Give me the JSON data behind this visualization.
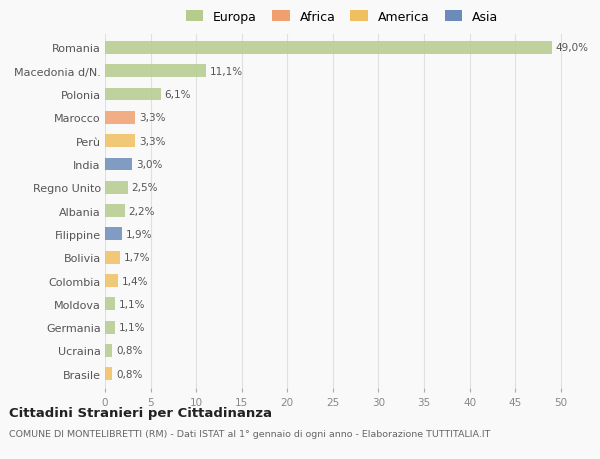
{
  "countries": [
    "Romania",
    "Macedonia d/N.",
    "Polonia",
    "Marocco",
    "Perù",
    "India",
    "Regno Unito",
    "Albania",
    "Filippine",
    "Bolivia",
    "Colombia",
    "Moldova",
    "Germania",
    "Ucraina",
    "Brasile"
  ],
  "values": [
    49.0,
    11.1,
    6.1,
    3.3,
    3.3,
    3.0,
    2.5,
    2.2,
    1.9,
    1.7,
    1.4,
    1.1,
    1.1,
    0.8,
    0.8
  ],
  "labels": [
    "49,0%",
    "11,1%",
    "6,1%",
    "3,3%",
    "3,3%",
    "3,0%",
    "2,5%",
    "2,2%",
    "1,9%",
    "1,7%",
    "1,4%",
    "1,1%",
    "1,1%",
    "0,8%",
    "0,8%"
  ],
  "continents": [
    "Europa",
    "Europa",
    "Europa",
    "Africa",
    "America",
    "Asia",
    "Europa",
    "Europa",
    "Asia",
    "America",
    "America",
    "Europa",
    "Europa",
    "Europa",
    "America"
  ],
  "continent_colors": {
    "Europa": "#b5cc8e",
    "Africa": "#f0a070",
    "America": "#f0c060",
    "Asia": "#6b8cba"
  },
  "legend_order": [
    "Europa",
    "Africa",
    "America",
    "Asia"
  ],
  "legend_colors": [
    "#b5cc8e",
    "#f0a070",
    "#f0c060",
    "#6b8cba"
  ],
  "title": "Cittadini Stranieri per Cittadinanza",
  "subtitle": "COMUNE DI MONTELIBRETTI (RM) - Dati ISTAT al 1° gennaio di ogni anno - Elaborazione TUTTITALIA.IT",
  "xlim": [
    0,
    52
  ],
  "xticks": [
    0,
    5,
    10,
    15,
    20,
    25,
    30,
    35,
    40,
    45,
    50
  ],
  "bg_color": "#f9f9f9",
  "grid_color": "#e0e0e0",
  "bar_height": 0.55
}
